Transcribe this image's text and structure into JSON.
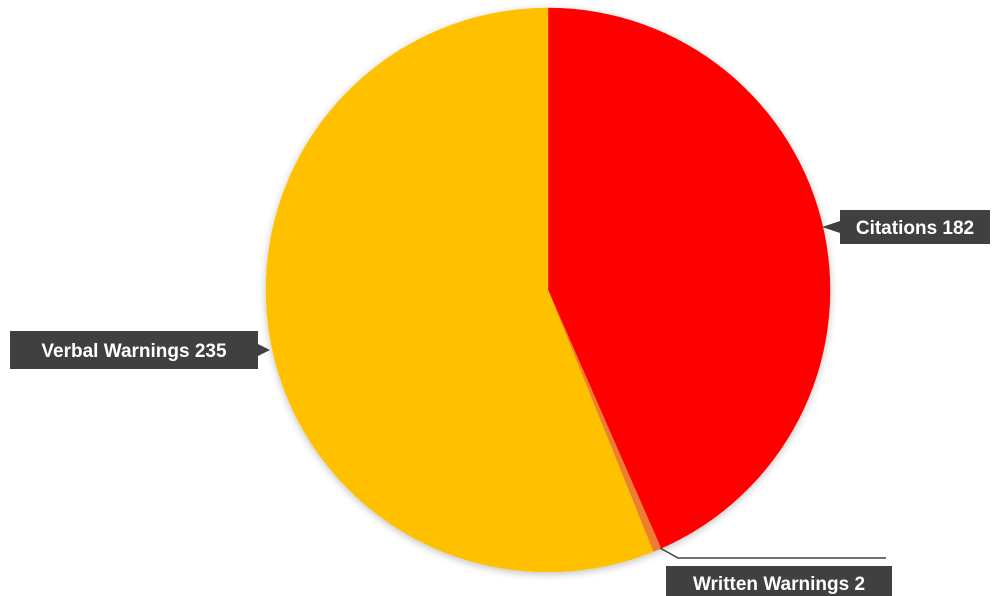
{
  "chart_data": {
    "type": "pie",
    "title": "",
    "legend": "none",
    "slices": [
      {
        "name": "Citations",
        "value": 182,
        "label": "Citations 182",
        "color": "#FF0000"
      },
      {
        "name": "Written Warnings",
        "value": 2,
        "label": "Written Warnings 2",
        "color": "#ED7D31"
      },
      {
        "name": "Verbal Warnings",
        "value": 235,
        "label": "Verbal Warnings 235",
        "color": "#FFC000"
      }
    ],
    "label_style": {
      "background": "#404040",
      "text_color": "#FFFFFF"
    }
  }
}
